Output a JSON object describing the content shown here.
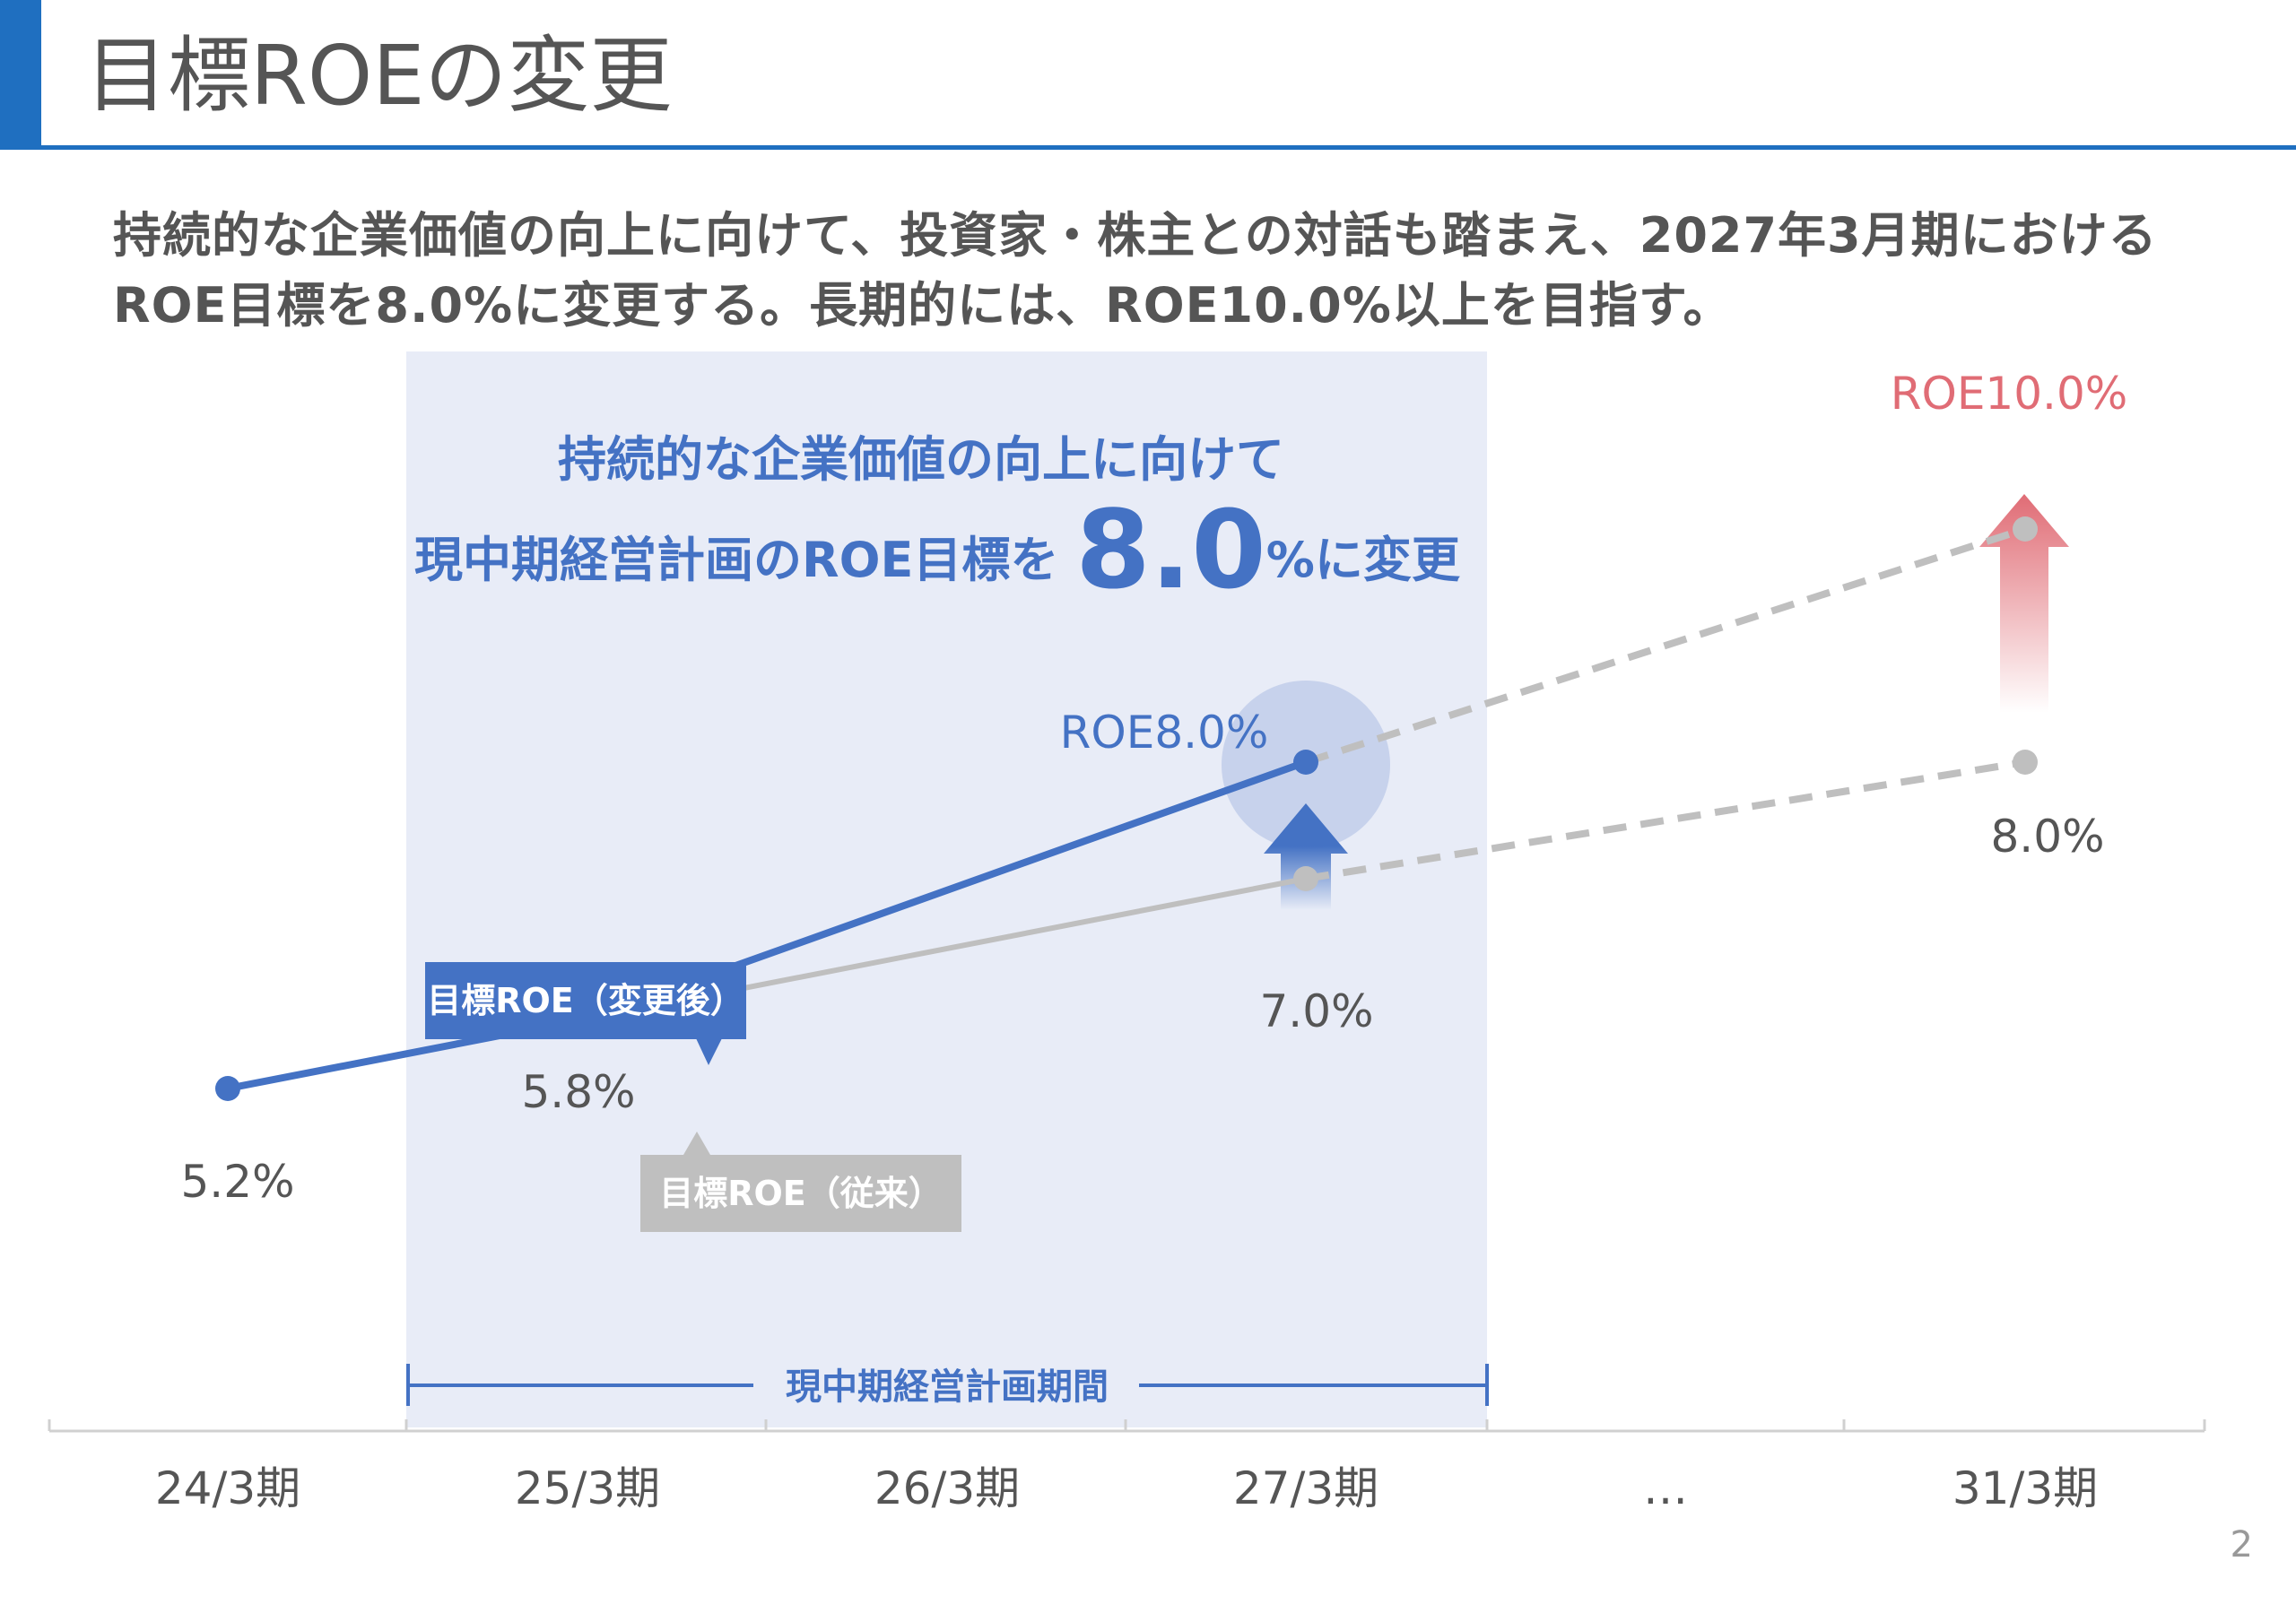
{
  "title": "目標ROEの変更",
  "lead": {
    "line1": "持続的な企業価値の向上に向けて、投資家・株主との対話も踏まえ、2027年3月期における",
    "line2": "ROE目標を8.0%に変更する。長期的には、ROE10.0%以上を目指す。"
  },
  "headline": {
    "line1": "持続的な企業価値の向上に向けて",
    "line2_prefix": "現中期経営計画のROE目標を",
    "line2_big": "8.0",
    "line2_suffix": "%に変更"
  },
  "callouts": {
    "new": "目標ROE（変更後）",
    "old": "目標ROE（従来）"
  },
  "period_label": "現中期経営計画期間",
  "page_number": "2",
  "colors": {
    "accent": "#1f6fc0",
    "new": "#4472c4",
    "old": "#bfbfbf",
    "long_term": "#e06c75",
    "shade": "#e8ecf7"
  },
  "chart_data": {
    "type": "line",
    "categories": [
      "24/3期",
      "25/3期",
      "26/3期",
      "27/3期",
      "…",
      "31/3期"
    ],
    "series": [
      {
        "name": "目標ROE（変更後）",
        "values": [
          5.2,
          5.8,
          null,
          8.0,
          null,
          10.0
        ],
        "value_unit": "%",
        "projection_from": "27/3期"
      },
      {
        "name": "目標ROE（従来）",
        "values": [
          null,
          5.8,
          null,
          7.0,
          null,
          8.0
        ],
        "value_unit": "%",
        "projection_from": "27/3期"
      }
    ],
    "data_labels": {
      "p0": "5.2%",
      "p1": "5.8%",
      "new_27": "ROE8.0%",
      "old_27": "7.0%",
      "new_31": "ROE10.0%",
      "old_31": "8.0%"
    },
    "period": {
      "from": "25/3期",
      "to": "27/3期"
    }
  }
}
